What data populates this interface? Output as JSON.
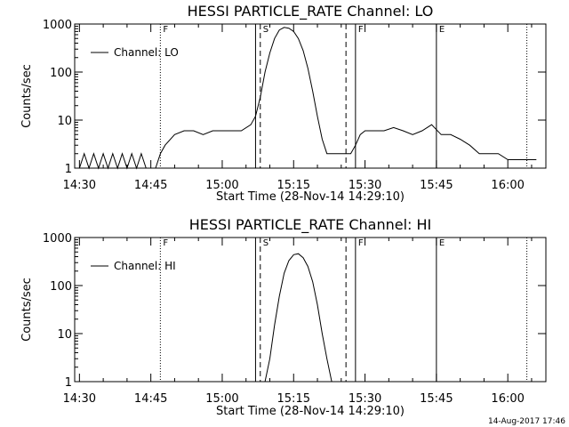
{
  "footer": {
    "date": "14-Aug-2017 17:46"
  },
  "chart_data": [
    {
      "type": "line",
      "title": "HESSI PARTICLE_RATE Channel: LO",
      "xlabel": "Start Time (28-Nov-14 14:29:10)",
      "ylabel": "Counts/sec",
      "yscale": "log",
      "ylim": [
        1,
        1000
      ],
      "xlim": [
        "14:29",
        "16:08"
      ],
      "xticks": [
        "14:30",
        "14:45",
        "15:00",
        "15:15",
        "15:30",
        "15:45",
        "16:00"
      ],
      "yticks": [
        "1",
        "10",
        "100",
        "1000"
      ],
      "legend": {
        "label": "Channel: LO",
        "position": "top-left"
      },
      "flags": [
        "F",
        "S",
        "F",
        "E"
      ],
      "markers": [
        {
          "time": "14:47",
          "style": "dotted"
        },
        {
          "time": "15:07",
          "style": "solid"
        },
        {
          "time": "15:08",
          "style": "dashed"
        },
        {
          "time": "15:26",
          "style": "dashed"
        },
        {
          "time": "15:28",
          "style": "solid"
        },
        {
          "time": "15:45",
          "style": "solid"
        },
        {
          "time": "16:04",
          "style": "dotted"
        }
      ],
      "series": [
        {
          "name": "Channel: LO",
          "x": [
            "14:30",
            "14:31",
            "14:32",
            "14:33",
            "14:34",
            "14:35",
            "14:36",
            "14:37",
            "14:38",
            "14:39",
            "14:40",
            "14:41",
            "14:42",
            "14:43",
            "14:44",
            "14:45",
            "14:46",
            "14:47",
            "14:48",
            "14:50",
            "14:52",
            "14:54",
            "14:56",
            "14:58",
            "15:00",
            "15:02",
            "15:04",
            "15:06",
            "15:07",
            "15:08",
            "15:09",
            "15:10",
            "15:11",
            "15:12",
            "15:13",
            "15:14",
            "15:15",
            "15:16",
            "15:17",
            "15:18",
            "15:19",
            "15:20",
            "15:21",
            "15:22",
            "15:23",
            "15:24",
            "15:25",
            "15:26",
            "15:27",
            "15:28",
            "15:29",
            "15:30",
            "15:32",
            "15:34",
            "15:36",
            "15:38",
            "15:40",
            "15:42",
            "15:44",
            "15:46",
            "15:48",
            "15:50",
            "15:52",
            "15:54",
            "15:56",
            "15:58",
            "16:00",
            "16:02",
            "16:04",
            "16:06"
          ],
          "y": [
            1,
            2,
            1,
            2,
            1,
            2,
            1,
            2,
            1,
            2,
            1,
            2,
            1,
            2,
            1,
            1,
            1,
            2,
            3,
            5,
            6,
            6,
            5,
            6,
            6,
            6,
            6,
            8,
            12,
            30,
            100,
            250,
            500,
            750,
            850,
            820,
            700,
            500,
            280,
            120,
            40,
            12,
            4,
            2,
            2,
            2,
            2,
            2,
            2,
            3,
            5,
            6,
            6,
            6,
            7,
            6,
            5,
            6,
            8,
            5,
            5,
            4,
            3,
            2,
            2,
            2,
            1.5,
            1.5,
            1.5,
            1.5
          ]
        }
      ]
    },
    {
      "type": "line",
      "title": "HESSI PARTICLE_RATE Channel: HI",
      "xlabel": "Start Time (28-Nov-14 14:29:10)",
      "ylabel": "Counts/sec",
      "yscale": "log",
      "ylim": [
        1,
        1000
      ],
      "xlim": [
        "14:29",
        "16:08"
      ],
      "xticks": [
        "14:30",
        "14:45",
        "15:00",
        "15:15",
        "15:30",
        "15:45",
        "16:00"
      ],
      "yticks": [
        "1",
        "10",
        "100",
        "1000"
      ],
      "legend": {
        "label": "Channel: HI",
        "position": "top-left"
      },
      "flags": [
        "F",
        "S",
        "F",
        "E"
      ],
      "markers": [
        {
          "time": "14:47",
          "style": "dotted"
        },
        {
          "time": "15:07",
          "style": "solid"
        },
        {
          "time": "15:08",
          "style": "dashed"
        },
        {
          "time": "15:26",
          "style": "dashed"
        },
        {
          "time": "15:28",
          "style": "solid"
        },
        {
          "time": "15:45",
          "style": "solid"
        },
        {
          "time": "16:04",
          "style": "dotted"
        }
      ],
      "series": [
        {
          "name": "Channel: HI",
          "x": [
            "15:09",
            "15:10",
            "15:11",
            "15:12",
            "15:13",
            "15:14",
            "15:15",
            "15:16",
            "15:17",
            "15:18",
            "15:19",
            "15:20",
            "15:21",
            "15:22",
            "15:23"
          ],
          "y": [
            1,
            3,
            15,
            60,
            180,
            330,
            440,
            460,
            380,
            250,
            120,
            40,
            10,
            3,
            1
          ]
        }
      ]
    }
  ]
}
